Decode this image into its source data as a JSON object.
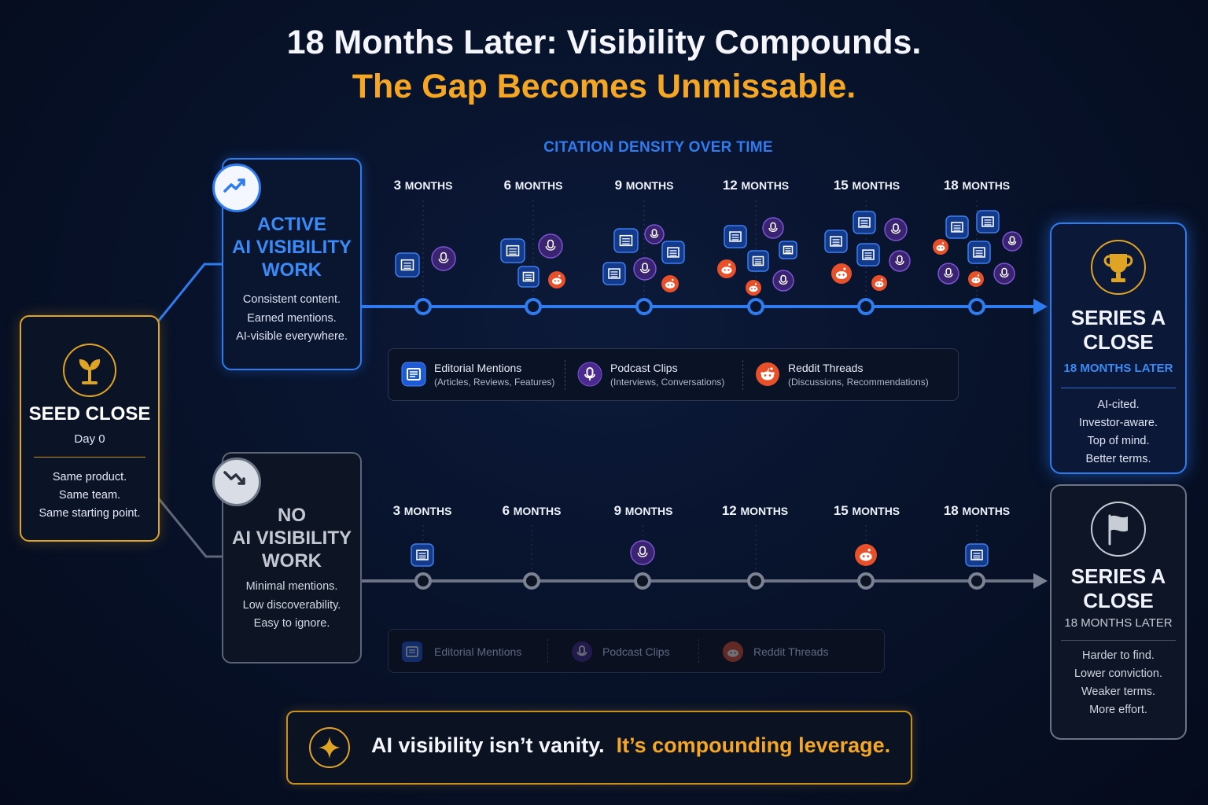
{
  "header": {
    "title_line1": "18 Months Later: Visibility Compounds.",
    "title_line2": "The Gap Becomes Unmissable.",
    "density_label": "CITATION DENSITY OVER TIME"
  },
  "seed": {
    "title": "SEED CLOSE",
    "day": "Day 0",
    "lines": [
      "Same product.",
      "Same team.",
      "Same starting point."
    ],
    "icon": "sprout-icon"
  },
  "active_track": {
    "title": "ACTIVE AI VISIBILITY WORK",
    "lines": [
      "Consistent content.",
      "Earned mentions.",
      "AI-visible everywhere."
    ],
    "icon": "trending-up-icon",
    "color": "#2f7bf0",
    "months": [
      {
        "num": "3",
        "unit": "MONTHS"
      },
      {
        "num": "6",
        "unit": "MONTHS"
      },
      {
        "num": "9",
        "unit": "MONTHS"
      },
      {
        "num": "12",
        "unit": "MONTHS"
      },
      {
        "num": "15",
        "unit": "MONTHS"
      },
      {
        "num": "18",
        "unit": "MONTHS"
      }
    ]
  },
  "noai_track": {
    "title": "NO AI VISIBILITY WORK",
    "lines": [
      "Minimal mentions.",
      "Low discoverability.",
      "Easy to ignore."
    ],
    "icon": "trending-down-icon",
    "color": "#6b7384",
    "months": [
      {
        "num": "3",
        "unit": "MONTHS"
      },
      {
        "num": "6",
        "unit": "MONTHS"
      },
      {
        "num": "9",
        "unit": "MONTHS"
      },
      {
        "num": "12",
        "unit": "MONTHS"
      },
      {
        "num": "15",
        "unit": "MONTHS"
      },
      {
        "num": "18",
        "unit": "MONTHS"
      }
    ]
  },
  "legend_active": [
    {
      "name": "Editorial Mentions",
      "desc": "(Articles, Reviews, Features)",
      "icon": "article-icon"
    },
    {
      "name": "Podcast Clips",
      "desc": "(Interviews, Conversations)",
      "icon": "microphone-icon"
    },
    {
      "name": "Reddit Threads",
      "desc": "(Discussions, Recommendations)",
      "icon": "reddit-icon"
    }
  ],
  "legend_noai": [
    {
      "name": "Editorial Mentions",
      "icon": "article-icon"
    },
    {
      "name": "Podcast Clips",
      "icon": "microphone-icon"
    },
    {
      "name": "Reddit Threads",
      "icon": "reddit-icon"
    }
  ],
  "series_a_active": {
    "title": "SERIES A CLOSE",
    "later": "18 MONTHS LATER",
    "lines": [
      "AI-cited.",
      "Investor-aware.",
      "Top of mind.",
      "Better terms."
    ],
    "icon": "trophy-icon"
  },
  "series_a_noai": {
    "title": "SERIES A CLOSE",
    "later": "18 MONTHS LATER",
    "lines": [
      "Harder to find.",
      "Lower conviction.",
      "Weaker terms.",
      "More effort."
    ],
    "icon": "flag-icon"
  },
  "banner": {
    "text_white": "AI visibility isn’t vanity.",
    "text_gold": "It’s compounding leverage.",
    "icon": "sparkle-icon"
  },
  "colors": {
    "gold": "#f5a623",
    "blue": "#2f7bf0",
    "editorial": "#1e5ad8",
    "podcast": "#6b3fc4",
    "reddit": "#e8502a"
  }
}
